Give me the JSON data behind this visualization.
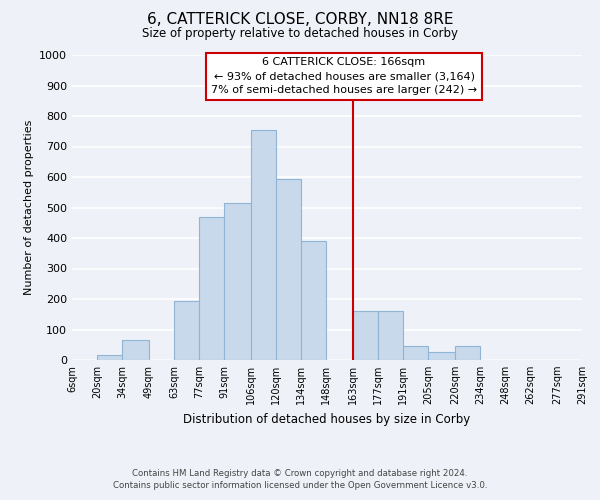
{
  "title": "6, CATTERICK CLOSE, CORBY, NN18 8RE",
  "subtitle": "Size of property relative to detached houses in Corby",
  "xlabel": "Distribution of detached houses by size in Corby",
  "ylabel": "Number of detached properties",
  "bar_edges": [
    6,
    20,
    34,
    49,
    63,
    77,
    91,
    106,
    120,
    134,
    148,
    163,
    177,
    191,
    205,
    220,
    234,
    248,
    262,
    277,
    291
  ],
  "bar_heights": [
    0,
    15,
    65,
    0,
    195,
    470,
    515,
    755,
    595,
    390,
    0,
    160,
    160,
    45,
    25,
    45,
    0,
    0,
    0,
    0
  ],
  "bar_color": "#c8d9ec",
  "bar_edge_color": "#8fb4d4",
  "vline_x": 163,
  "vline_color": "#cc0000",
  "annotation_title": "6 CATTERICK CLOSE: 166sqm",
  "annotation_line1": "← 93% of detached houses are smaller (3,164)",
  "annotation_line2": "7% of semi-detached houses are larger (242) →",
  "annotation_box_color": "#ffffff",
  "annotation_box_edge": "#cc0000",
  "tick_labels": [
    "6sqm",
    "20sqm",
    "34sqm",
    "49sqm",
    "63sqm",
    "77sqm",
    "91sqm",
    "106sqm",
    "120sqm",
    "134sqm",
    "148sqm",
    "163sqm",
    "177sqm",
    "191sqm",
    "205sqm",
    "220sqm",
    "234sqm",
    "248sqm",
    "262sqm",
    "277sqm",
    "291sqm"
  ],
  "ylim": [
    0,
    1000
  ],
  "yticks": [
    0,
    100,
    200,
    300,
    400,
    500,
    600,
    700,
    800,
    900,
    1000
  ],
  "footer1": "Contains HM Land Registry data © Crown copyright and database right 2024.",
  "footer2": "Contains public sector information licensed under the Open Government Licence v3.0.",
  "background_color": "#eef2f8",
  "grid_color": "#ffffff"
}
